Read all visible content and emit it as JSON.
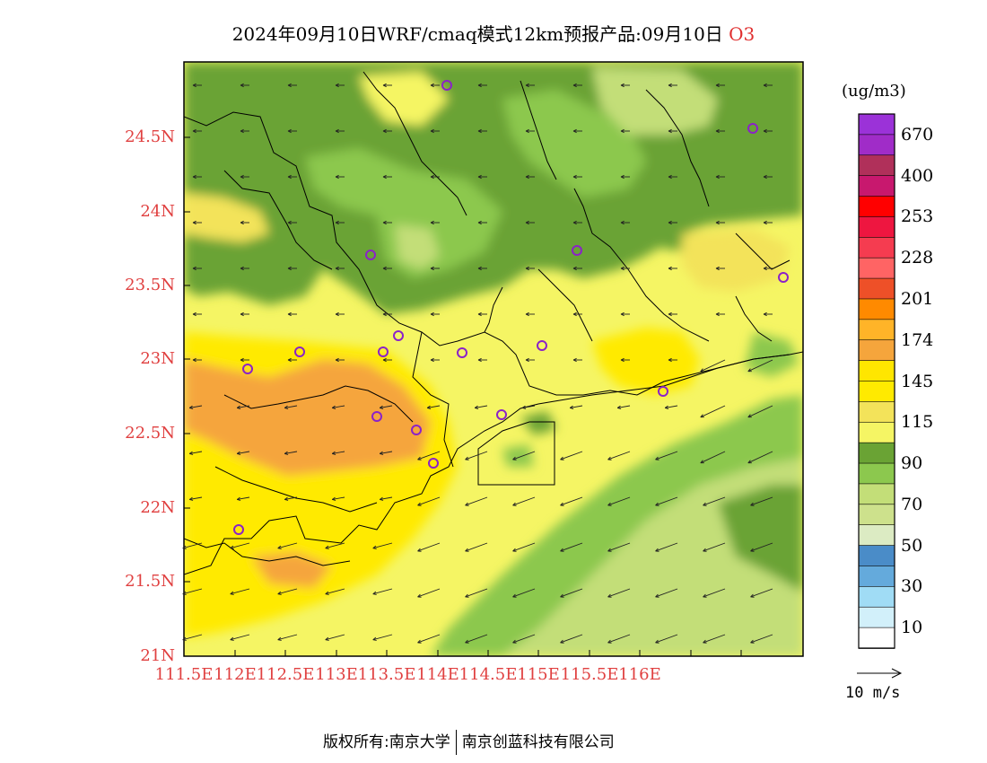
{
  "title": {
    "main": "2024年09月10日WRF/cmaq模式12km预报产品:09月10日",
    "species": "O3"
  },
  "axes": {
    "lat_labels": [
      "24.5N",
      "24N",
      "23.5N",
      "23N",
      "22.5N",
      "22N",
      "21.5N",
      "21N"
    ],
    "lon_labels": [
      "111.5E",
      "112E",
      "112.5E",
      "113E",
      "113.5E",
      "114E",
      "114.5E",
      "115E",
      "115.5E",
      "116E"
    ]
  },
  "colorbar": {
    "unit": "(ug/m3)",
    "labels": [
      "670",
      "400",
      "253",
      "228",
      "201",
      "174",
      "145",
      "115",
      "90",
      "70",
      "50",
      "30",
      "10"
    ],
    "colors": [
      "#9b32d8",
      "#a02cc8",
      "#b0305a",
      "#c8186e",
      "#ff0000",
      "#ee1640",
      "#f53c50",
      "#ff6464",
      "#ee5028",
      "#ff8a00",
      "#ffb428",
      "#f5a53c",
      "#ffe600",
      "#ffea00",
      "#f3e35a",
      "#f5f564",
      "#6aa334",
      "#8cc84e",
      "#c3de78",
      "#cde18c",
      "#dcebc3",
      "#4a8cc8",
      "#64aadc",
      "#a0dcf5",
      "#d2f0fa",
      "#ffffff"
    ]
  },
  "wind": {
    "scale_label": "10  m/s"
  },
  "copyright": {
    "left": "版权所有:南京大学",
    "right": "南京创蓝科技有限公司"
  }
}
